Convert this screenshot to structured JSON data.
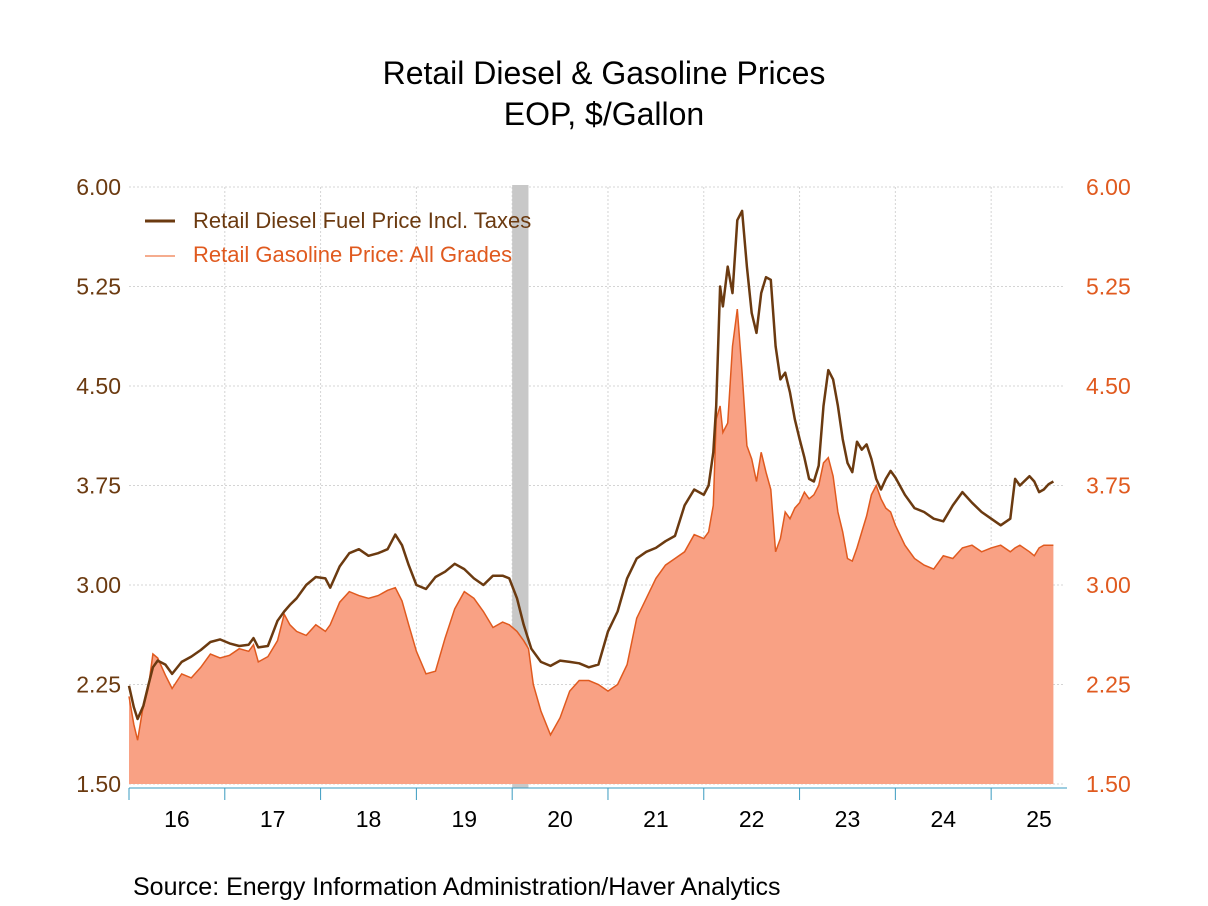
{
  "chart_data": {
    "type": "area",
    "title": "Retail Diesel & Gasoline Prices",
    "subtitle": "EOP, $/Gallon",
    "source": "Source:  Energy Information Administration/Haver Analytics",
    "x_tick_labels": [
      "16",
      "17",
      "18",
      "19",
      "20",
      "21",
      "22",
      "23",
      "24",
      "25"
    ],
    "x_range": [
      2016.0,
      2025.75
    ],
    "y_left": {
      "ticks": [
        "6.00",
        "5.25",
        "4.50",
        "3.75",
        "3.00",
        "2.25",
        "1.50"
      ],
      "ylim": [
        1.5,
        6.0
      ]
    },
    "y_right": {
      "ticks": [
        "6.00",
        "5.25",
        "4.50",
        "3.75",
        "3.00",
        "2.25",
        "1.50"
      ],
      "ylim": [
        1.5,
        6.0
      ]
    },
    "grid": true,
    "legend_position": "top-left",
    "recession_shading": {
      "start": 2020.0,
      "end": 2020.17,
      "color": "#c8c8c8"
    },
    "colors": {
      "diesel": "#6b3a10",
      "gasoline_line": "#e05a1f",
      "gasoline_fill": "#f9a184",
      "left_axis": "#6b3a10",
      "right_axis": "#e05a1f",
      "x_axis": "#3a9bc0"
    },
    "series": [
      {
        "name": "Retail Diesel Fuel Price Incl. Taxes",
        "style": "line",
        "x": [
          2016.0,
          2016.05,
          2016.09,
          2016.15,
          2016.2,
          2016.25,
          2016.3,
          2016.38,
          2016.45,
          2016.55,
          2016.65,
          2016.75,
          2016.85,
          2016.95,
          2017.05,
          2017.15,
          2017.25,
          2017.3,
          2017.35,
          2017.45,
          2017.55,
          2017.62,
          2017.68,
          2017.75,
          2017.85,
          2017.95,
          2018.05,
          2018.1,
          2018.2,
          2018.3,
          2018.4,
          2018.5,
          2018.6,
          2018.7,
          2018.78,
          2018.85,
          2018.92,
          2019.0,
          2019.1,
          2019.2,
          2019.3,
          2019.4,
          2019.5,
          2019.6,
          2019.7,
          2019.8,
          2019.9,
          2019.97,
          2020.05,
          2020.12,
          2020.2,
          2020.3,
          2020.4,
          2020.5,
          2020.6,
          2020.7,
          2020.8,
          2020.9,
          2021.0,
          2021.1,
          2021.2,
          2021.3,
          2021.4,
          2021.5,
          2021.6,
          2021.7,
          2021.8,
          2021.9,
          2022.0,
          2022.05,
          2022.1,
          2022.13,
          2022.17,
          2022.2,
          2022.25,
          2022.3,
          2022.35,
          2022.4,
          2022.45,
          2022.5,
          2022.55,
          2022.6,
          2022.65,
          2022.7,
          2022.75,
          2022.8,
          2022.85,
          2022.9,
          2022.95,
          2023.0,
          2023.05,
          2023.1,
          2023.15,
          2023.2,
          2023.25,
          2023.3,
          2023.35,
          2023.4,
          2023.45,
          2023.5,
          2023.55,
          2023.6,
          2023.65,
          2023.7,
          2023.75,
          2023.8,
          2023.85,
          2023.9,
          2023.95,
          2024.0,
          2024.1,
          2024.2,
          2024.3,
          2024.4,
          2024.5,
          2024.6,
          2024.7,
          2024.8,
          2024.9,
          2025.0,
          2025.1,
          2025.2,
          2025.25,
          2025.3,
          2025.4,
          2025.45,
          2025.5,
          2025.55,
          2025.6,
          2025.65
        ],
        "values": [
          2.24,
          2.08,
          1.99,
          2.09,
          2.24,
          2.38,
          2.43,
          2.4,
          2.33,
          2.42,
          2.46,
          2.51,
          2.57,
          2.59,
          2.56,
          2.54,
          2.55,
          2.6,
          2.53,
          2.54,
          2.73,
          2.8,
          2.85,
          2.9,
          3.0,
          3.06,
          3.05,
          2.98,
          3.14,
          3.24,
          3.27,
          3.22,
          3.24,
          3.27,
          3.38,
          3.3,
          3.15,
          3.0,
          2.97,
          3.06,
          3.1,
          3.16,
          3.12,
          3.05,
          3.0,
          3.07,
          3.07,
          3.05,
          2.9,
          2.7,
          2.52,
          2.42,
          2.39,
          2.43,
          2.42,
          2.41,
          2.38,
          2.4,
          2.65,
          2.8,
          3.05,
          3.2,
          3.25,
          3.28,
          3.33,
          3.37,
          3.6,
          3.72,
          3.68,
          3.75,
          4.0,
          4.35,
          5.25,
          5.1,
          5.4,
          5.2,
          5.75,
          5.82,
          5.4,
          5.05,
          4.9,
          5.2,
          5.32,
          5.3,
          4.8,
          4.55,
          4.6,
          4.45,
          4.25,
          4.1,
          3.96,
          3.8,
          3.78,
          3.9,
          4.35,
          4.62,
          4.55,
          4.35,
          4.1,
          3.92,
          3.85,
          4.08,
          4.02,
          4.06,
          3.95,
          3.8,
          3.72,
          3.8,
          3.86,
          3.81,
          3.68,
          3.58,
          3.55,
          3.5,
          3.48,
          3.6,
          3.7,
          3.62,
          3.55,
          3.5,
          3.45,
          3.5,
          3.8,
          3.75,
          3.82,
          3.78,
          3.7,
          3.72,
          3.76,
          3.78
        ]
      },
      {
        "name": "Retail Gasoline Price: All Grades",
        "style": "area",
        "x": [
          2016.0,
          2016.05,
          2016.09,
          2016.14,
          2016.2,
          2016.25,
          2016.3,
          2016.38,
          2016.45,
          2016.55,
          2016.65,
          2016.75,
          2016.85,
          2016.95,
          2017.05,
          2017.15,
          2017.25,
          2017.3,
          2017.35,
          2017.45,
          2017.55,
          2017.62,
          2017.68,
          2017.75,
          2017.85,
          2017.95,
          2018.05,
          2018.1,
          2018.2,
          2018.3,
          2018.4,
          2018.5,
          2018.6,
          2018.7,
          2018.78,
          2018.85,
          2018.92,
          2019.0,
          2019.1,
          2019.2,
          2019.3,
          2019.4,
          2019.5,
          2019.6,
          2019.7,
          2019.8,
          2019.9,
          2019.97,
          2020.05,
          2020.12,
          2020.17,
          2020.22,
          2020.3,
          2020.4,
          2020.5,
          2020.6,
          2020.7,
          2020.8,
          2020.9,
          2021.0,
          2021.1,
          2021.2,
          2021.3,
          2021.4,
          2021.5,
          2021.6,
          2021.7,
          2021.8,
          2021.9,
          2022.0,
          2022.05,
          2022.1,
          2022.13,
          2022.17,
          2022.2,
          2022.25,
          2022.3,
          2022.35,
          2022.4,
          2022.45,
          2022.5,
          2022.55,
          2022.6,
          2022.65,
          2022.7,
          2022.75,
          2022.8,
          2022.85,
          2022.9,
          2022.95,
          2023.0,
          2023.05,
          2023.1,
          2023.15,
          2023.2,
          2023.25,
          2023.3,
          2023.35,
          2023.4,
          2023.45,
          2023.5,
          2023.55,
          2023.6,
          2023.65,
          2023.7,
          2023.75,
          2023.8,
          2023.85,
          2023.9,
          2023.95,
          2024.0,
          2024.1,
          2024.2,
          2024.3,
          2024.4,
          2024.5,
          2024.6,
          2024.7,
          2024.8,
          2024.9,
          2025.0,
          2025.1,
          2025.2,
          2025.25,
          2025.3,
          2025.4,
          2025.45,
          2025.5,
          2025.55,
          2025.6,
          2025.65
        ],
        "values": [
          2.16,
          1.95,
          1.83,
          2.05,
          2.22,
          2.48,
          2.45,
          2.32,
          2.22,
          2.33,
          2.3,
          2.38,
          2.48,
          2.45,
          2.47,
          2.52,
          2.5,
          2.55,
          2.42,
          2.46,
          2.58,
          2.78,
          2.7,
          2.65,
          2.62,
          2.7,
          2.65,
          2.7,
          2.87,
          2.95,
          2.92,
          2.9,
          2.92,
          2.96,
          2.98,
          2.88,
          2.7,
          2.5,
          2.33,
          2.35,
          2.6,
          2.82,
          2.95,
          2.9,
          2.8,
          2.68,
          2.72,
          2.7,
          2.65,
          2.58,
          2.52,
          2.25,
          2.05,
          1.87,
          2.0,
          2.2,
          2.28,
          2.28,
          2.25,
          2.2,
          2.25,
          2.4,
          2.75,
          2.9,
          3.05,
          3.15,
          3.2,
          3.25,
          3.38,
          3.35,
          3.4,
          3.6,
          4.25,
          4.35,
          4.15,
          4.22,
          4.8,
          5.08,
          4.6,
          4.05,
          3.95,
          3.78,
          4.0,
          3.85,
          3.72,
          3.25,
          3.35,
          3.55,
          3.5,
          3.58,
          3.62,
          3.7,
          3.65,
          3.68,
          3.75,
          3.92,
          3.96,
          3.82,
          3.55,
          3.4,
          3.2,
          3.18,
          3.28,
          3.4,
          3.52,
          3.68,
          3.75,
          3.65,
          3.58,
          3.55,
          3.45,
          3.3,
          3.2,
          3.15,
          3.12,
          3.22,
          3.2,
          3.28,
          3.3,
          3.25,
          3.28,
          3.3,
          3.25,
          3.28,
          3.3,
          3.25,
          3.22,
          3.28,
          3.3,
          3.3,
          3.3
        ]
      }
    ]
  }
}
